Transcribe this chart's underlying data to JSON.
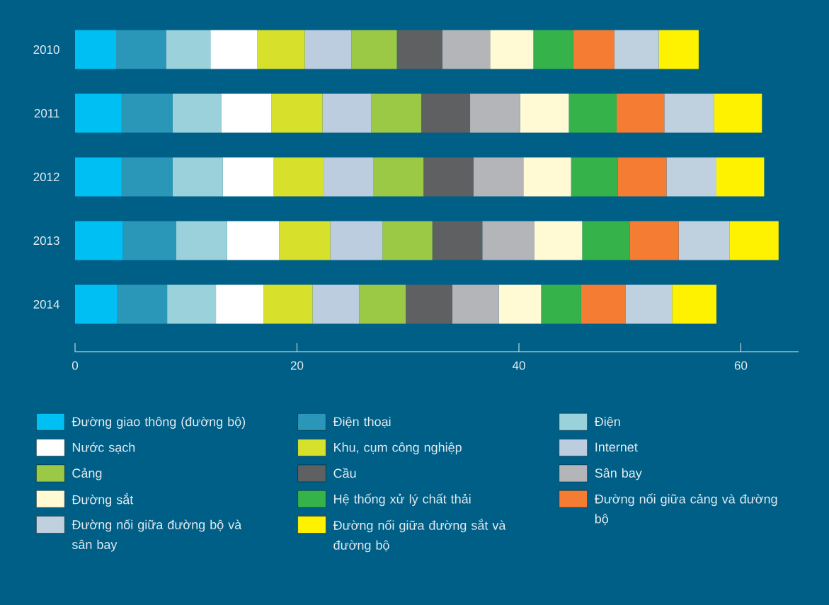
{
  "chart_data": {
    "type": "bar",
    "orientation": "horizontal",
    "stacked": true,
    "categories": [
      "2010",
      "2011",
      "2012",
      "2013",
      "2014"
    ],
    "xlim": [
      0,
      65.2
    ],
    "xticks": [
      0,
      20,
      40,
      60
    ],
    "legend": "bottom",
    "series": [
      {
        "name": "Đường giao thông (đường bộ)",
        "color": "#00c0f3",
        "values": [
          3.7,
          4.2,
          4.2,
          4.3,
          3.8
        ]
      },
      {
        "name": "Điện thoại",
        "color": "#2b97b8",
        "values": [
          4.5,
          4.6,
          4.6,
          4.8,
          4.5
        ]
      },
      {
        "name": "Điện",
        "color": "#9ad1db",
        "values": [
          4.0,
          4.4,
          4.5,
          4.6,
          4.4
        ]
      },
      {
        "name": "Nước sạch",
        "color": "#ffffff",
        "values": [
          4.2,
          4.5,
          4.6,
          4.7,
          4.3
        ]
      },
      {
        "name": "Khu, cụm công nghiệp",
        "color": "#d7e02a",
        "values": [
          4.3,
          4.6,
          4.5,
          4.6,
          4.4
        ]
      },
      {
        "name": "Internet",
        "color": "#bdcde0",
        "values": [
          4.2,
          4.4,
          4.5,
          4.7,
          4.2
        ]
      },
      {
        "name": "Cảng",
        "color": "#9bc945",
        "values": [
          4.1,
          4.5,
          4.5,
          4.5,
          4.2
        ]
      },
      {
        "name": "Cầu",
        "color": "#5f6062",
        "values": [
          4.1,
          4.4,
          4.5,
          4.5,
          4.2
        ]
      },
      {
        "name": "Sân bay",
        "color": "#b3b5b8",
        "values": [
          4.3,
          4.5,
          4.5,
          4.7,
          4.2
        ]
      },
      {
        "name": "Đường sắt",
        "color": "#fffad4",
        "values": [
          3.9,
          4.4,
          4.3,
          4.3,
          3.8
        ]
      },
      {
        "name": "Hệ thống xử lý chất thải",
        "color": "#35b34a",
        "values": [
          3.6,
          4.3,
          4.2,
          4.3,
          3.6
        ]
      },
      {
        "name": "Đường nối giữa cảng và đường bộ",
        "color": "#f47c33",
        "values": [
          3.7,
          4.3,
          4.4,
          4.4,
          4.0
        ]
      },
      {
        "name": "Đường nối giữa đường bộ và sân bay",
        "color": "#bfd1df",
        "values": [
          4.0,
          4.5,
          4.5,
          4.6,
          4.2
        ]
      },
      {
        "name": "Đường nối giữa đường sắt và đường bộ",
        "color": "#fff200",
        "values": [
          3.6,
          4.3,
          4.3,
          4.4,
          4.0
        ]
      }
    ]
  }
}
